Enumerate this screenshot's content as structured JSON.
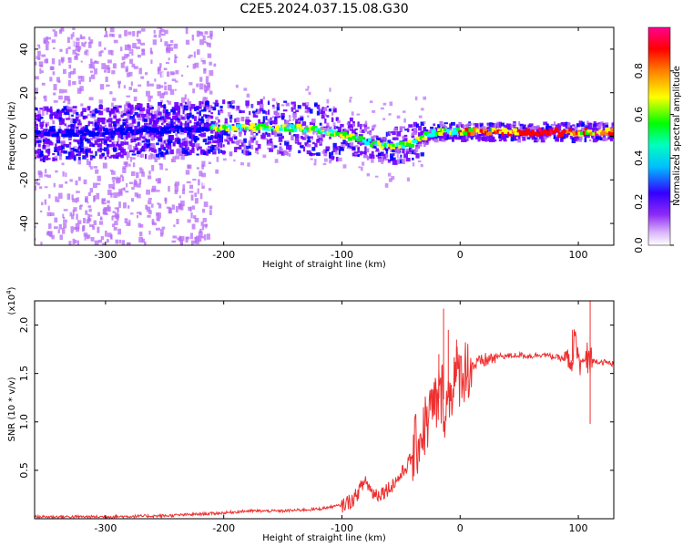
{
  "title": "C2E5.2024.037.15.08.G30",
  "chart_data": [
    {
      "type": "heatmap",
      "name": "spectrogram",
      "xlabel": "Height of straight line (km)",
      "ylabel": "Frequency (Hz)",
      "xlim": [
        -360,
        130
      ],
      "ylim": [
        -50,
        50
      ],
      "xticks": [
        -300,
        -200,
        -100,
        0,
        100
      ],
      "xtick_labels": [
        "-300",
        "-200",
        "-100",
        "0",
        "100"
      ],
      "yticks": [
        -40,
        -20,
        0,
        20,
        40
      ],
      "ytick_labels": [
        "-40",
        "-20",
        "0",
        "20",
        "40"
      ],
      "ridge": {
        "x": [
          -360,
          -300,
          -250,
          -200,
          -150,
          -120,
          -100,
          -80,
          -70,
          -60,
          -50,
          -40,
          -30,
          -20,
          -10,
          0,
          20,
          50,
          80,
          100,
          130
        ],
        "frequency_hz": [
          1,
          2,
          3,
          4,
          4,
          3,
          1,
          -2,
          -4,
          -4,
          -4,
          -3,
          0,
          2,
          2,
          2,
          2,
          2,
          2,
          2,
          2
        ]
      },
      "colorbar": {
        "label": "Normalized spectral amplitude",
        "range": [
          0,
          1
        ],
        "ticks": [
          0.0,
          0.2,
          0.4,
          0.6,
          0.8
        ],
        "tick_labels": [
          "0.0",
          "0.2",
          "0.4",
          "0.6",
          "0.8"
        ],
        "colors": [
          "#ffffff",
          "#b56cf5",
          "#7000ff",
          "#0000ff",
          "#00ffff",
          "#00ff00",
          "#ffff00",
          "#ff8000",
          "#ff0000",
          "#ff0080"
        ]
      }
    },
    {
      "type": "line",
      "name": "snr",
      "xlabel": "Height of straight line (km)",
      "ylabel": "SNR (10 * v/v)",
      "scale_label": "(x10",
      "scale_exponent": "4",
      "scale_close": ")",
      "xlim": [
        -360,
        130
      ],
      "ylim": [
        0,
        2.25
      ],
      "xticks": [
        -300,
        -200,
        -100,
        0,
        100
      ],
      "xtick_labels": [
        "-300",
        "-200",
        "-100",
        "0",
        "100"
      ],
      "yticks": [
        0.5,
        1.0,
        1.5,
        2.0
      ],
      "ytick_labels": [
        "0.5",
        "1.0",
        "1.5",
        "2.0"
      ],
      "color": "#ee3030",
      "series": [
        {
          "name": "SNR",
          "x": [
            -360,
            -300,
            -250,
            -200,
            -180,
            -150,
            -120,
            -100,
            -90,
            -85,
            -80,
            -75,
            -70,
            -65,
            -60,
            -55,
            -50,
            -45,
            -40,
            -35,
            -30,
            -25,
            -20,
            -15,
            -12,
            -10,
            -8,
            -5,
            0,
            5,
            10,
            15,
            20,
            25,
            30,
            35,
            40,
            50,
            60,
            70,
            75,
            80,
            85,
            90,
            95,
            97,
            100,
            105,
            110,
            115,
            120,
            130
          ],
          "y": [
            0.02,
            0.02,
            0.03,
            0.06,
            0.08,
            0.08,
            0.1,
            0.14,
            0.2,
            0.3,
            0.4,
            0.28,
            0.25,
            0.28,
            0.32,
            0.38,
            0.45,
            0.55,
            0.65,
            0.82,
            0.95,
            1.1,
            1.2,
            1.3,
            1.1,
            1.25,
            1.35,
            1.45,
            1.5,
            1.55,
            1.58,
            1.6,
            1.63,
            1.65,
            1.67,
            1.68,
            1.68,
            1.69,
            1.68,
            1.7,
            1.68,
            1.67,
            1.66,
            1.64,
            1.63,
            1.9,
            1.62,
            1.63,
            1.62,
            1.63,
            1.62,
            1.6
          ]
        }
      ]
    }
  ]
}
